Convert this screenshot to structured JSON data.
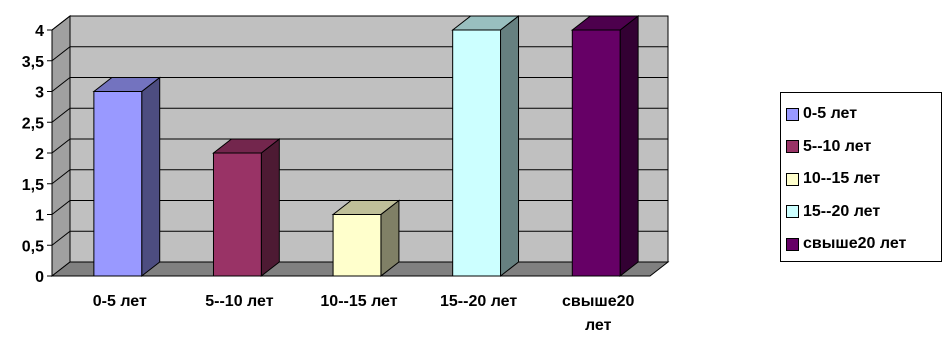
{
  "chart_data": {
    "type": "bar",
    "categories": [
      "0-5 лет",
      "5--10 лет",
      "10--15 лет",
      "15--20 лет",
      "свыше20 лет"
    ],
    "category_lines": [
      [
        "0-5 лет"
      ],
      [
        "5--10 лет"
      ],
      [
        "10--15 лет"
      ],
      [
        "15--20 лет"
      ],
      [
        "свыше20",
        "лет"
      ]
    ],
    "values": [
      3,
      2,
      1,
      4,
      4
    ],
    "y_ticks": [
      "0",
      "0,5",
      "1",
      "1,5",
      "2",
      "2,5",
      "3",
      "3,5",
      "4"
    ],
    "ylim": [
      0,
      4
    ],
    "title": "",
    "xlabel": "",
    "ylabel": "",
    "grid": true,
    "three_d": true,
    "wall_color": "#c0c0c0",
    "legend_position": "right",
    "legend": [
      {
        "label": "0-5 лет",
        "color": "#9999ff"
      },
      {
        "label": "5--10 лет",
        "color": "#993366"
      },
      {
        "label": "10--15 лет",
        "color": "#ffffcc"
      },
      {
        "label": "15--20 лет",
        "color": "#ccffff"
      },
      {
        "label": "свыше20 лет",
        "color": "#660066"
      }
    ]
  }
}
